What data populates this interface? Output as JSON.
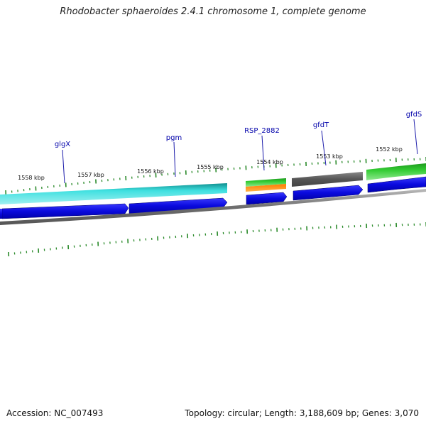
{
  "title": "Rhodobacter sphaeroides 2.4.1 chromosome 1, complete genome",
  "footer": {
    "accession": "Accession: NC_007493",
    "summary": "Topology: circular; Length: 3,188,609 bp; Genes: 3,070"
  },
  "kbp_labels": [
    "1558 kbp",
    "1557 kbp",
    "1556 kbp",
    "1555 kbp",
    "1554 kbp",
    "1553 kbp",
    "1552 kbp"
  ],
  "gene_labels": [
    "glgX",
    "pgm",
    "RSP_2882",
    "gfdT",
    "gfdS"
  ],
  "colors": {
    "cyan_feature": "#22c7c7",
    "green_feature": "#33cc33",
    "orange_feature": "#ff8c1a",
    "gray_feature": "#666666",
    "blue_cds": "#1010dd",
    "backbone": "#777777",
    "tick": "#2a8a2a",
    "label": "#0000aa"
  }
}
